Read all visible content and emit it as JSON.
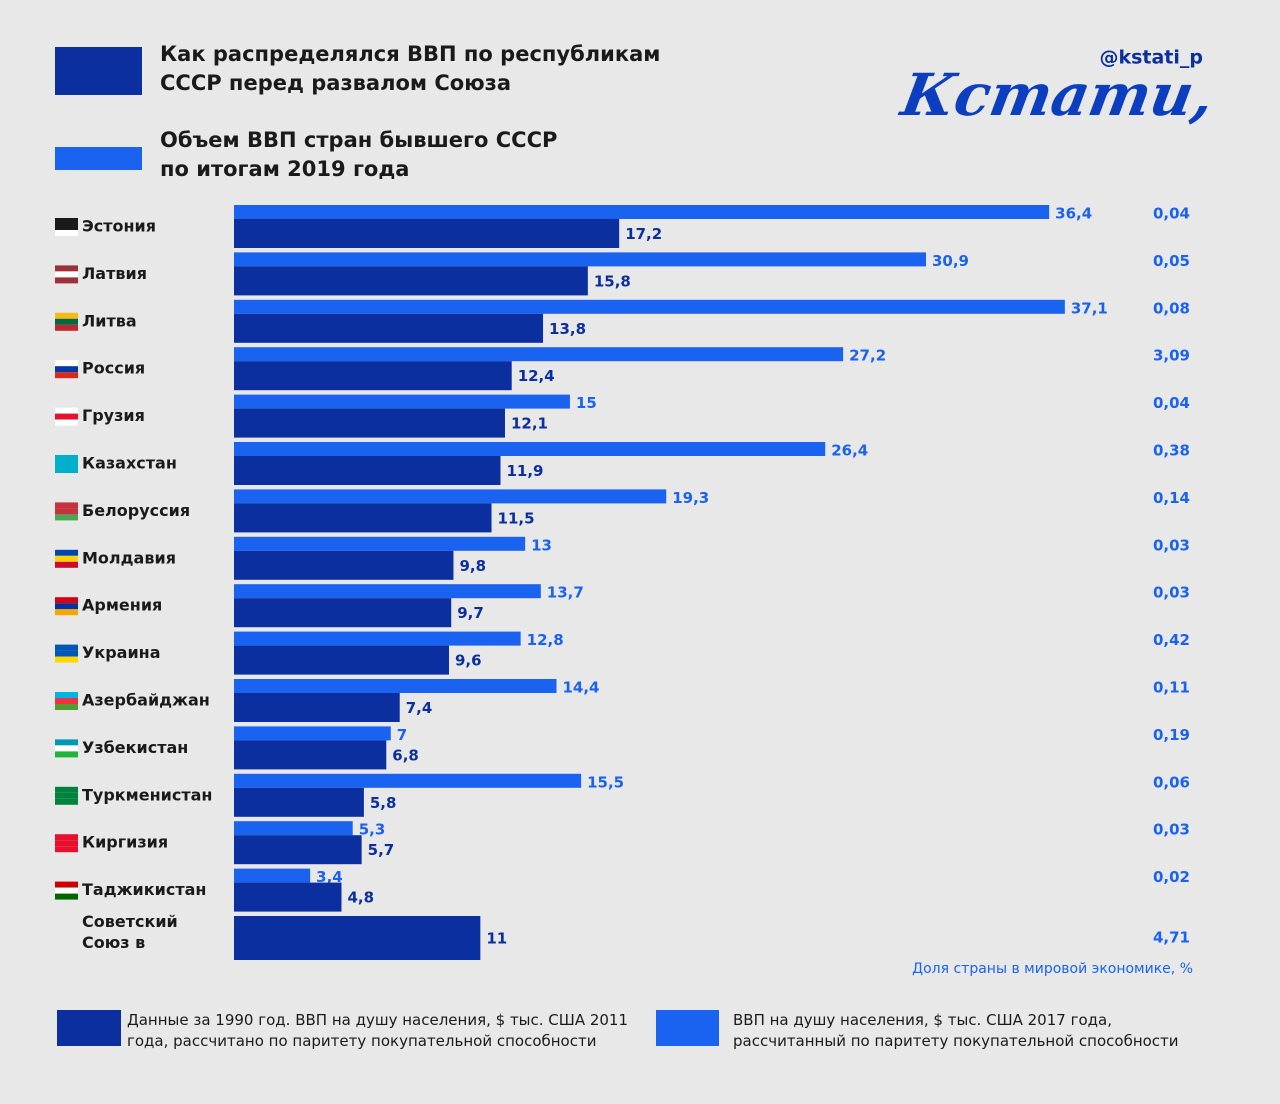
{
  "header": {
    "title_1990": "Как распределялся ВВП по республикам СССР перед развалом Союза",
    "title_2019": "Объем ВВП стран бывшего СССР по итогам 2019 года",
    "handle": "@kstati_p",
    "logo": "Кстати,"
  },
  "chart_data": {
    "type": "bar",
    "orientation": "horizontal",
    "categories": [
      "Эстония",
      "Латвия",
      "Литва",
      "Россия",
      "Грузия",
      "Казахстан",
      "Белоруссия",
      "Молдавия",
      "Армения",
      "Украина",
      "Азербайджан",
      "Узбекистан",
      "Туркменистан",
      "Киргизия",
      "Таджикистан",
      "Советский Союз в целом"
    ],
    "series": [
      {
        "name": "ВВП на душу населения, $ тыс. США 2017 года, рассчитанный по паритету покупательной способности",
        "color": "#1a62f0",
        "values": [
          36.4,
          30.9,
          37.1,
          27.2,
          15,
          26.4,
          19.3,
          13,
          13.7,
          12.8,
          14.4,
          7,
          15.5,
          5.3,
          3.4,
          null
        ],
        "value_labels": [
          "36,4",
          "30,9",
          "37,1",
          "27,2",
          "15",
          "26,4",
          "19,3",
          "13",
          "13,7",
          "12,8",
          "14,4",
          "7",
          "15,5",
          "5,3",
          "3,4",
          null
        ]
      },
      {
        "name": "Данные за 1990 год. ВВП на душу населения, $ тыс. США 2011 года, рассчитано по паритету покупательной способности",
        "color": "#0b2f9e",
        "values": [
          17.2,
          15.8,
          13.8,
          12.4,
          12.1,
          11.9,
          11.5,
          9.8,
          9.7,
          9.6,
          7.4,
          6.8,
          5.8,
          5.7,
          4.8,
          11
        ],
        "value_labels": [
          "17,2",
          "15,8",
          "13,8",
          "12,4",
          "12,1",
          "11,9",
          "11,5",
          "9,8",
          "9,7",
          "9,6",
          "7,4",
          "6,8",
          "5,8",
          "5,7",
          "4,8",
          "11"
        ]
      }
    ],
    "xlim": [
      0,
      38
    ],
    "share": {
      "label": "Доля страны в мировой экономике, %",
      "values": [
        0.04,
        0.05,
        0.08,
        3.09,
        0.04,
        0.38,
        0.14,
        0.03,
        0.03,
        0.42,
        0.11,
        0.19,
        0.06,
        0.03,
        0.02,
        4.71
      ],
      "value_labels": [
        "0,04",
        "0,05",
        "0,08",
        "3,09",
        "0,04",
        "0,38",
        "0,14",
        "0,03",
        "0,03",
        "0,42",
        "0,11",
        "0,19",
        "0,06",
        "0,03",
        "0,02",
        "4,71"
      ]
    }
  }
}
